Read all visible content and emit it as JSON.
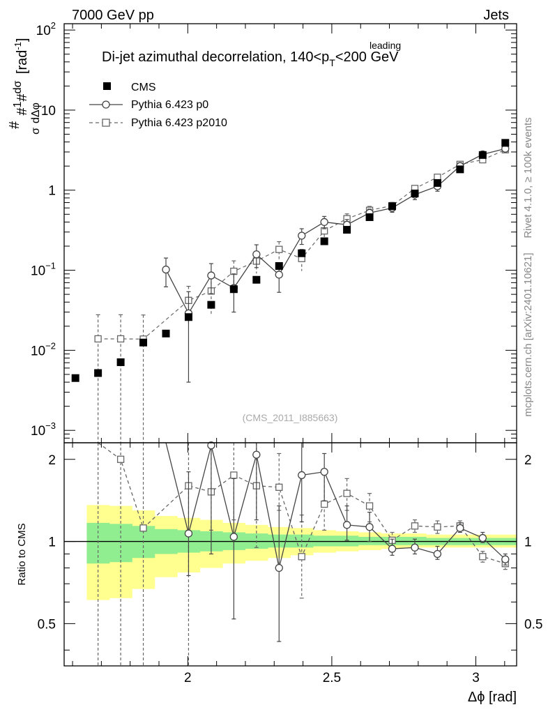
{
  "header": {
    "left": "7000 GeV pp",
    "right": "Jets"
  },
  "side_labels": {
    "rivet": "Rivet 4.1.0, ≥ 100k events",
    "mcplots": "mcplots.cern.ch [arXiv:2401.10621]"
  },
  "chart_data": {
    "type": "scatter",
    "title_main": "Di-jet azimuthal decorrelation, 140<p",
    "title_sup": "leading",
    "title_sub": "T",
    "title_end": "<200 GeV",
    "analysis_tag": "(CMS_2011_I885663)",
    "ylabel": "#frac{1}{σ}#frac{dσ}{dΔφ} [rad⁻¹]",
    "ylabel_parts": {
      "a": "1",
      "b": "σ",
      "c": "dσ",
      "d": "dΔφ",
      "unit": "[rad",
      "unit_exp": "-1",
      "unit_close": "]",
      "hash": "#"
    },
    "xlabel": "Δϕ [rad]",
    "ratio_ylabel": "Ratio to CMS",
    "xlim": [
      1.5708,
      3.1416
    ],
    "ylim_log": [
      0.0007,
      120
    ],
    "ratio_ylim": [
      0.35,
      2.3
    ],
    "x_ticks": [
      {
        "value": 2.0,
        "label": "2"
      },
      {
        "value": 2.5,
        "label": "2.5"
      },
      {
        "value": 3.0,
        "label": "3"
      }
    ],
    "y_ticks": [
      {
        "value": 100,
        "base": "10",
        "exp": "2"
      },
      {
        "value": 10,
        "base": "10",
        "exp": ""
      },
      {
        "value": 1,
        "base": "1",
        "exp": ""
      },
      {
        "value": 0.1,
        "base": "10",
        "exp": "−1"
      },
      {
        "value": 0.01,
        "base": "10",
        "exp": "−2"
      },
      {
        "value": 0.001,
        "base": "10",
        "exp": "−3"
      }
    ],
    "ratio_ticks": [
      {
        "value": 2,
        "label": "2"
      },
      {
        "value": 1,
        "label": "1"
      },
      {
        "value": 0.5,
        "label": "0.5"
      }
    ],
    "x": [
      1.61,
      1.6885,
      1.7671,
      1.8456,
      1.9242,
      2.0027,
      2.0813,
      2.1598,
      2.2384,
      2.3169,
      2.3955,
      2.474,
      2.5525,
      2.6311,
      2.7096,
      2.7882,
      2.8667,
      2.9452,
      3.0238,
      3.1023
    ],
    "series": [
      {
        "name": "CMS",
        "style": "data",
        "values": [
          0.0045,
          0.0052,
          0.0071,
          0.0125,
          0.0162,
          0.026,
          0.037,
          0.058,
          0.076,
          0.113,
          0.163,
          0.23,
          0.32,
          0.46,
          0.63,
          0.91,
          1.23,
          1.82,
          2.75,
          3.9
        ]
      },
      {
        "name": "Pythia 6.423 p0",
        "style": "circle-solid",
        "values": [
          null,
          null,
          null,
          null,
          null,
          0.102,
          0.029,
          0.086,
          0.06,
          0.158,
          0.088,
          0.27,
          0.4,
          0.37,
          0.52,
          0.6,
          0.88,
          1.12,
          2.0,
          2.8,
          3.3
        ],
        "x": [
          null,
          null,
          null,
          null,
          null,
          1.9242,
          2.0027,
          2.0813,
          2.1598,
          2.2384,
          2.3169,
          2.3955,
          2.474,
          2.5525,
          2.6311,
          2.7096,
          2.7882,
          2.8667,
          2.9452,
          3.0238,
          3.1023
        ],
        "errors": [
          null,
          null,
          null,
          null,
          null,
          0.04,
          0.025,
          0.035,
          0.03,
          0.05,
          0.035,
          0.06,
          0.07,
          0.06,
          0.06,
          0.07,
          0.12,
          0.15,
          0.2,
          0.2,
          0.2
        ]
      },
      {
        "name": "Pythia 6.423 p2010",
        "style": "square-dashed",
        "values": [
          null,
          0.0139,
          0.0139,
          0.0138,
          null,
          0.042,
          0.055,
          0.097,
          0.13,
          0.182,
          0.14,
          0.31,
          0.44,
          0.56,
          0.64,
          1.05,
          1.45,
          2.1,
          2.4,
          3.2
        ],
        "errors_rel": [
          null,
          1.0,
          1.0,
          1.0,
          null,
          0.5,
          0.5,
          0.35,
          0.3,
          0.25,
          0.3,
          0.2,
          0.15,
          0.12,
          0.1,
          0.08,
          0.07,
          0.06,
          0.05,
          0.05
        ]
      }
    ],
    "ratio_series": [
      {
        "name": "Pythia 6.423 p0",
        "x": [
          1.9242,
          2.0027,
          2.0813,
          2.1598,
          2.2384,
          2.3169,
          2.3955,
          2.474,
          2.5525,
          2.6311,
          2.7096,
          2.7882,
          2.8667,
          2.9452,
          3.0238,
          3.1023
        ],
        "values": [
          3.5,
          1.07,
          2.25,
          1.04,
          2.08,
          0.8,
          1.75,
          1.8,
          1.15,
          1.13,
          0.94,
          0.95,
          0.9,
          1.12,
          1.03,
          0.86
        ],
        "err_lo": [
          0,
          0.75,
          0.9,
          0.52,
          1.2,
          0.43,
          1.18,
          1.41,
          1.01,
          1.0,
          0.89,
          0.9,
          0.86,
          1.08,
          0.99,
          0.82
        ],
        "err_hi": [
          0,
          1.8,
          2.3,
          1.7,
          2.3,
          1.35,
          2.3,
          2.1,
          1.35,
          1.28,
          1.02,
          1.02,
          0.96,
          1.17,
          1.08,
          0.9
        ]
      },
      {
        "name": "Pythia 6.423 p2010",
        "x": [
          1.6885,
          1.7671,
          1.8456,
          2.0027,
          2.0813,
          2.1598,
          2.2384,
          2.3169,
          2.3955,
          2.474,
          2.5525,
          2.6311,
          2.7096,
          2.7882,
          2.8667,
          2.9452,
          3.0238,
          3.1023
        ],
        "values": [
          2.8,
          2.0,
          1.12,
          1.6,
          1.52,
          1.75,
          1.6,
          1.58,
          0.88,
          1.37,
          1.5,
          1.35,
          1.01,
          1.14,
          1.13,
          1.14,
          0.88,
          0.83
        ],
        "err_lo": [
          0.35,
          0.35,
          0.35,
          0.35,
          1.1,
          1.2,
          0.95,
          1.3,
          0.62,
          1.1,
          1.3,
          1.18,
          0.95,
          1.08,
          1.07,
          1.1,
          0.84,
          0.79
        ],
        "err_hi": [
          2.3,
          2.3,
          2.3,
          2.3,
          2.3,
          2.3,
          2.3,
          2.1,
          1.25,
          1.75,
          1.7,
          1.5,
          1.08,
          1.2,
          1.19,
          1.19,
          0.92,
          0.87
        ]
      }
    ],
    "ratio_band": {
      "x_edges": [
        1.6493,
        1.7278,
        1.8063,
        1.8849,
        1.9635,
        2.042,
        2.1206,
        2.1991,
        2.2777,
        2.3562,
        2.4347,
        2.5133,
        2.5918,
        2.6704,
        2.7489,
        2.8274,
        2.906,
        2.9845,
        3.0631,
        3.1416
      ],
      "stat_lo": [
        0.83,
        0.84,
        0.87,
        0.9,
        0.91,
        0.92,
        0.93,
        0.94,
        0.95,
        0.95,
        0.96,
        0.96,
        0.97,
        0.97,
        0.97,
        0.97,
        0.97,
        0.97,
        0.97
      ],
      "stat_hi": [
        1.17,
        1.16,
        1.14,
        1.11,
        1.1,
        1.09,
        1.08,
        1.07,
        1.06,
        1.06,
        1.05,
        1.05,
        1.04,
        1.04,
        1.04,
        1.03,
        1.03,
        1.03,
        1.03
      ],
      "tot_lo": [
        0.61,
        0.62,
        0.67,
        0.74,
        0.77,
        0.8,
        0.83,
        0.85,
        0.87,
        0.89,
        0.91,
        0.92,
        0.93,
        0.94,
        0.95,
        0.95,
        0.95,
        0.95,
        0.95
      ],
      "tot_hi": [
        1.36,
        1.35,
        1.3,
        1.24,
        1.22,
        1.2,
        1.17,
        1.15,
        1.13,
        1.12,
        1.1,
        1.09,
        1.08,
        1.07,
        1.07,
        1.06,
        1.06,
        1.06,
        1.06
      ],
      "stat_color": "#90ee90",
      "tot_color": "#ffff90"
    },
    "legend": [
      {
        "label": "CMS",
        "marker": "square-filled"
      },
      {
        "label": "Pythia 6.423 p0",
        "marker": "circle-solid"
      },
      {
        "label": "Pythia 6.423 p2010",
        "marker": "square-dashed"
      }
    ],
    "legend_position": "top-left",
    "colors": {
      "cms": "#000000",
      "p0": "#444444",
      "p2010": "#666666",
      "side_text": "#888888",
      "tag": "#aaaaaa"
    }
  }
}
